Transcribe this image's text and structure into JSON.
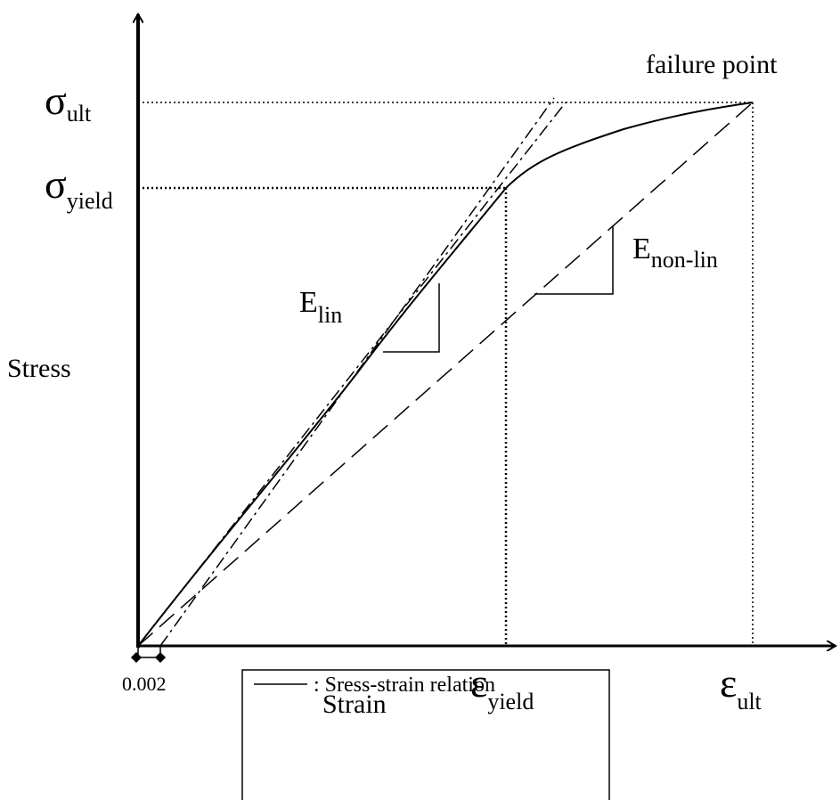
{
  "title": "failure point",
  "y_axis": {
    "label": "Stress",
    "sigma_ult": {
      "symbol": "σ",
      "sub": "ult"
    },
    "sigma_yield": {
      "symbol": "σ",
      "sub": "yield"
    }
  },
  "x_axis": {
    "label": "Strain",
    "offset": "0.002",
    "eps_yield": {
      "symbol": "ε",
      "sub": "yield"
    },
    "eps_ult": {
      "symbol": "ε",
      "sub": "ult"
    }
  },
  "moduli": {
    "lin": {
      "symbol": "E",
      "sub": "lin"
    },
    "nonlin": {
      "symbol": "E",
      "sub": "non-lin"
    }
  },
  "legend": {
    "items": [
      ": Sress-strain relation"
    ]
  }
}
